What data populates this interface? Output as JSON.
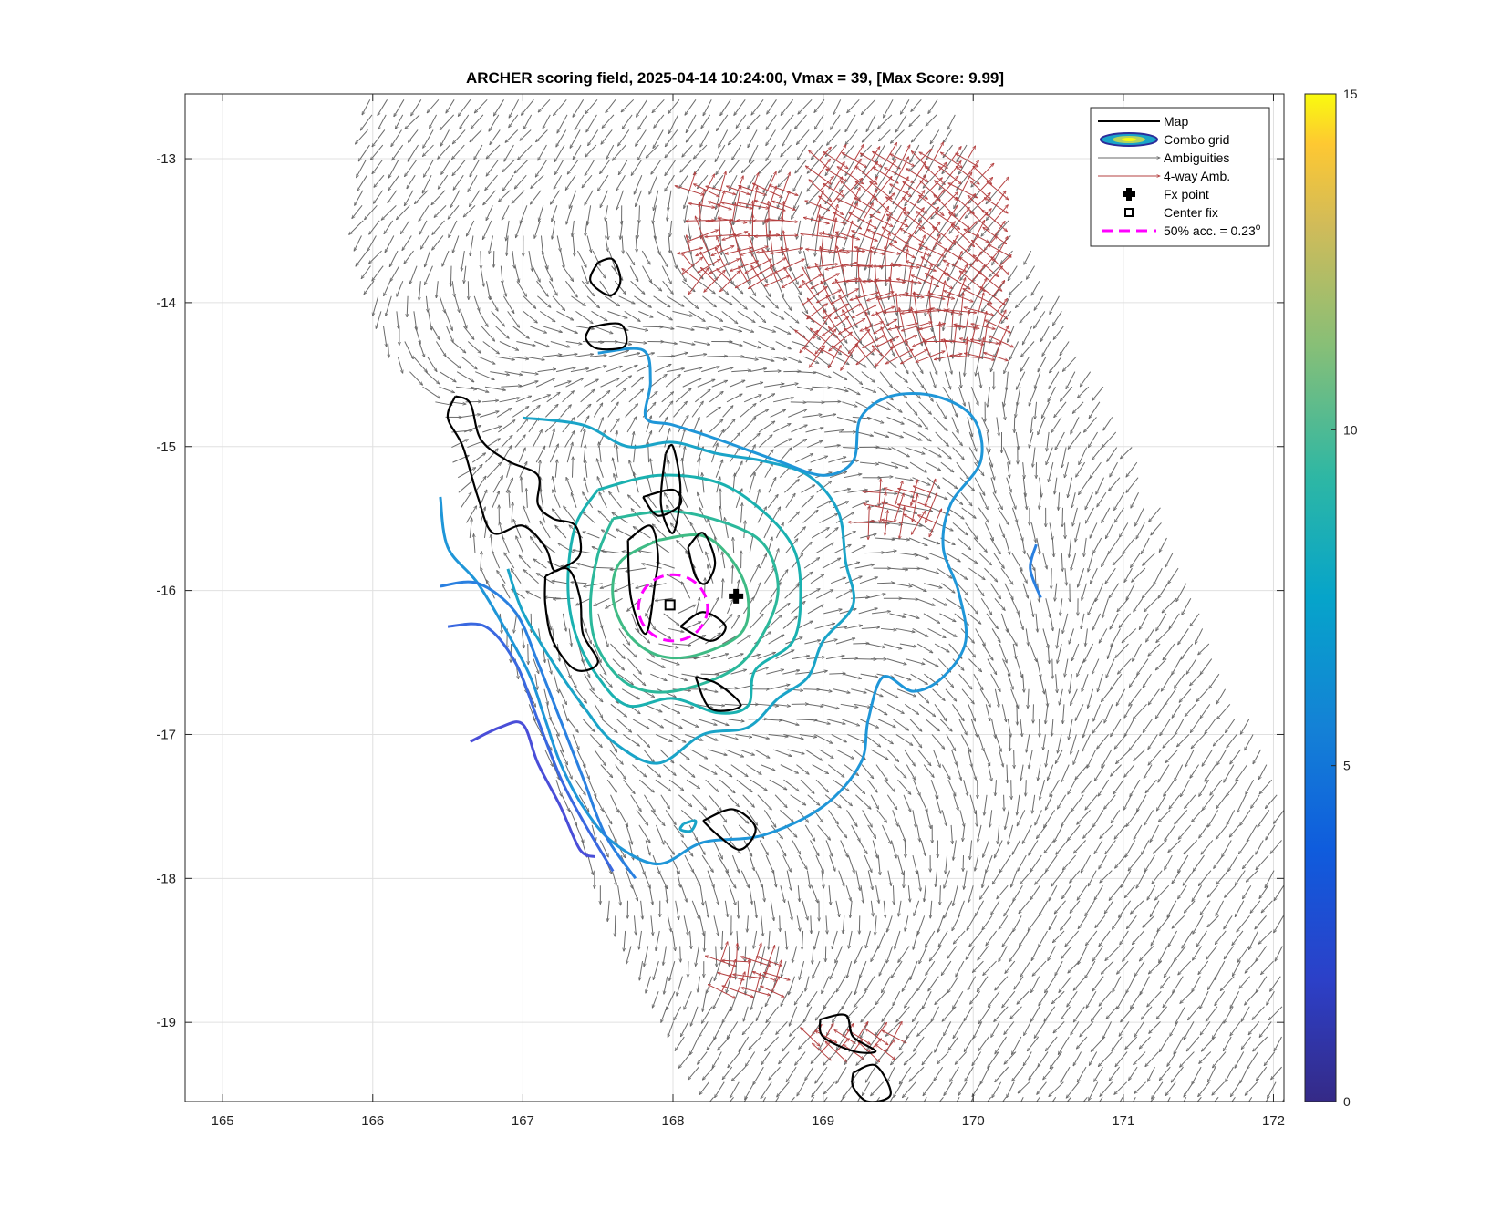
{
  "chart_data": {
    "type": "scatter",
    "title": "ARCHER scoring field, 2025-04-14 10:24:00, Vmax = 39, [Max Score: 9.99]",
    "xlabel": "",
    "ylabel": "",
    "xlim": [
      164.75,
      172.07
    ],
    "ylim": [
      -19.55,
      -12.55
    ],
    "xticks": [
      165,
      166,
      167,
      168,
      169,
      170,
      171,
      172
    ],
    "xtick_labels": [
      "165",
      "166",
      "167",
      "168",
      "169",
      "170",
      "171",
      "172"
    ],
    "yticks": [
      -13,
      -14,
      -15,
      -16,
      -17,
      -18,
      -19
    ],
    "ytick_labels": [
      "-13",
      "-14",
      "-15",
      "-16",
      "-17",
      "-18",
      "-19"
    ],
    "grid": true,
    "legend_position": "top-right",
    "legend": [
      {
        "label": "Map",
        "symbol": "black-line"
      },
      {
        "label": "Combo grid",
        "symbol": "contour-ellipse"
      },
      {
        "label": "Ambiguities",
        "symbol": "gray-arrow"
      },
      {
        "label": "4-way Amb.",
        "symbol": "red-arrow"
      },
      {
        "label": "Fx point",
        "symbol": "black-plus"
      },
      {
        "label": "Center fix",
        "symbol": "black-square"
      },
      {
        "label": "50% acc. = 0.23",
        "superscript": "o",
        "symbol": "magenta-dashed"
      }
    ],
    "fx_point": {
      "x": 168.42,
      "y": -16.04
    },
    "center_fix": {
      "x": 167.98,
      "y": -16.1
    },
    "accuracy_circle": {
      "center_x": 168.0,
      "center_y": -16.12,
      "radius_deg": 0.23
    },
    "colorbar": {
      "min": 0,
      "max": 15,
      "ticks": [
        0,
        5,
        10,
        15
      ],
      "tick_labels": [
        "0",
        "5",
        "10",
        "15"
      ],
      "colormap": "parula"
    },
    "contours": [
      {
        "level": 8.5,
        "color": "#3fbb85",
        "points": [
          [
            167.9,
            -15.65
          ],
          [
            168.2,
            -15.62
          ],
          [
            168.4,
            -15.8
          ],
          [
            168.5,
            -16.05
          ],
          [
            168.45,
            -16.3
          ],
          [
            168.15,
            -16.45
          ],
          [
            167.9,
            -16.45
          ],
          [
            167.7,
            -16.3
          ],
          [
            167.6,
            -16.05
          ],
          [
            167.65,
            -15.8
          ],
          [
            167.9,
            -15.65
          ]
        ]
      },
      {
        "level": 8.0,
        "color": "#2bb89b",
        "points": [
          [
            167.6,
            -15.5
          ],
          [
            168.0,
            -15.45
          ],
          [
            168.4,
            -15.55
          ],
          [
            168.62,
            -15.7
          ],
          [
            168.7,
            -16.0
          ],
          [
            168.6,
            -16.3
          ],
          [
            168.4,
            -16.55
          ],
          [
            168.0,
            -16.7
          ],
          [
            167.7,
            -16.65
          ],
          [
            167.5,
            -16.4
          ],
          [
            167.45,
            -16.1
          ],
          [
            167.5,
            -15.75
          ],
          [
            167.6,
            -15.5
          ]
        ]
      },
      {
        "level": 7.3,
        "color": "#1ab1b0",
        "points": [
          [
            167.5,
            -15.3
          ],
          [
            167.9,
            -15.2
          ],
          [
            168.3,
            -15.25
          ],
          [
            168.6,
            -15.45
          ],
          [
            168.8,
            -15.7
          ],
          [
            168.85,
            -16.0
          ],
          [
            168.8,
            -16.35
          ],
          [
            168.55,
            -16.55
          ],
          [
            168.5,
            -16.8
          ],
          [
            168.3,
            -16.85
          ],
          [
            168.0,
            -16.75
          ],
          [
            167.7,
            -16.8
          ],
          [
            167.5,
            -16.6
          ],
          [
            167.35,
            -16.3
          ],
          [
            167.3,
            -15.95
          ],
          [
            167.35,
            -15.55
          ],
          [
            167.5,
            -15.3
          ]
        ]
      },
      {
        "level": 6.5,
        "color": "#1aa4c8",
        "points": [
          [
            167.0,
            -14.8
          ],
          [
            167.4,
            -14.85
          ],
          [
            167.7,
            -15.0
          ],
          [
            168.0,
            -14.97
          ],
          [
            168.3,
            -15.05
          ],
          [
            168.6,
            -15.1
          ],
          [
            168.9,
            -15.2
          ],
          [
            169.1,
            -15.45
          ],
          [
            169.15,
            -15.8
          ],
          [
            169.2,
            -16.1
          ],
          [
            169.0,
            -16.35
          ],
          [
            168.9,
            -16.6
          ],
          [
            168.7,
            -16.75
          ],
          [
            168.5,
            -16.95
          ],
          [
            168.2,
            -17.0
          ],
          [
            167.9,
            -17.2
          ],
          [
            167.6,
            -17.05
          ],
          [
            167.4,
            -16.8
          ],
          [
            167.2,
            -16.5
          ],
          [
            167.0,
            -16.15
          ],
          [
            166.9,
            -15.85
          ]
        ]
      },
      {
        "level": 6.0,
        "color": "#1f96d8",
        "points": [
          [
            167.5,
            -14.35
          ],
          [
            167.8,
            -14.33
          ],
          [
            167.85,
            -14.55
          ],
          [
            167.82,
            -14.8
          ],
          [
            168.0,
            -14.85
          ],
          [
            168.3,
            -14.95
          ],
          [
            168.7,
            -15.1
          ],
          [
            169.0,
            -15.2
          ],
          [
            169.2,
            -15.1
          ],
          [
            169.25,
            -14.8
          ],
          [
            169.45,
            -14.65
          ],
          [
            169.75,
            -14.65
          ],
          [
            170.0,
            -14.8
          ],
          [
            170.05,
            -15.1
          ],
          [
            169.85,
            -15.4
          ],
          [
            169.8,
            -15.7
          ],
          [
            169.9,
            -16.0
          ],
          [
            169.95,
            -16.35
          ],
          [
            169.8,
            -16.6
          ],
          [
            169.6,
            -16.7
          ],
          [
            169.4,
            -16.6
          ],
          [
            169.3,
            -16.9
          ],
          [
            169.25,
            -17.2
          ],
          [
            169.0,
            -17.5
          ],
          [
            168.6,
            -17.7
          ],
          [
            168.2,
            -17.75
          ],
          [
            167.9,
            -17.9
          ],
          [
            167.6,
            -17.75
          ],
          [
            167.4,
            -17.5
          ],
          [
            167.25,
            -17.2
          ],
          [
            167.15,
            -16.9
          ],
          [
            167.05,
            -16.6
          ],
          [
            166.9,
            -16.3
          ],
          [
            166.7,
            -15.95
          ],
          [
            166.5,
            -15.7
          ],
          [
            166.45,
            -15.35
          ]
        ]
      },
      {
        "level": 5.0,
        "color": "#2a80e0",
        "points": [
          [
            166.45,
            -15.97
          ],
          [
            166.7,
            -15.95
          ],
          [
            166.95,
            -16.15
          ],
          [
            167.1,
            -16.5
          ],
          [
            167.25,
            -16.9
          ],
          [
            167.4,
            -17.3
          ],
          [
            167.55,
            -17.7
          ],
          [
            167.75,
            -18.0
          ]
        ]
      },
      {
        "level": 4.0,
        "color": "#3a68e0",
        "points": [
          [
            166.5,
            -16.25
          ],
          [
            166.75,
            -16.25
          ],
          [
            166.95,
            -16.5
          ],
          [
            167.1,
            -16.9
          ],
          [
            167.25,
            -17.3
          ],
          [
            167.4,
            -17.6
          ],
          [
            167.6,
            -17.95
          ]
        ]
      },
      {
        "level": 3.0,
        "color": "#4a4ed8",
        "points": [
          [
            166.65,
            -17.05
          ],
          [
            166.85,
            -16.95
          ],
          [
            167.0,
            -16.93
          ],
          [
            167.1,
            -17.2
          ],
          [
            167.25,
            -17.5
          ],
          [
            167.38,
            -17.8
          ],
          [
            167.48,
            -17.85
          ]
        ]
      },
      {
        "level": 5.0,
        "color": "#2a80e0",
        "points": [
          [
            170.42,
            -15.68
          ],
          [
            170.38,
            -15.85
          ],
          [
            170.45,
            -16.05
          ]
        ]
      },
      {
        "level": 6.5,
        "color": "#1aa4c8",
        "points": [
          [
            168.07,
            -17.62
          ],
          [
            168.15,
            -17.6
          ],
          [
            168.12,
            -17.67
          ],
          [
            168.05,
            -17.66
          ],
          [
            168.07,
            -17.62
          ]
        ]
      }
    ],
    "land_outlines": [
      [
        [
          167.5,
          -13.72
        ],
        [
          167.6,
          -13.7
        ],
        [
          167.65,
          -13.85
        ],
        [
          167.58,
          -13.95
        ],
        [
          167.45,
          -13.85
        ],
        [
          167.5,
          -13.72
        ]
      ],
      [
        [
          167.45,
          -14.17
        ],
        [
          167.65,
          -14.15
        ],
        [
          167.68,
          -14.3
        ],
        [
          167.5,
          -14.32
        ],
        [
          167.42,
          -14.25
        ],
        [
          167.45,
          -14.17
        ]
      ],
      [
        [
          166.55,
          -14.65
        ],
        [
          166.65,
          -14.7
        ],
        [
          166.72,
          -14.95
        ],
        [
          166.9,
          -15.1
        ],
        [
          167.1,
          -15.2
        ],
        [
          167.1,
          -15.4
        ],
        [
          167.2,
          -15.5
        ],
        [
          167.35,
          -15.55
        ],
        [
          167.38,
          -15.75
        ],
        [
          167.25,
          -15.85
        ],
        [
          167.2,
          -15.85
        ],
        [
          167.15,
          -15.7
        ],
        [
          167.0,
          -15.55
        ],
        [
          166.8,
          -15.6
        ],
        [
          166.7,
          -15.35
        ],
        [
          166.6,
          -15.0
        ],
        [
          166.5,
          -14.8
        ],
        [
          166.55,
          -14.65
        ]
      ],
      [
        [
          167.95,
          -15.05
        ],
        [
          168.0,
          -15.0
        ],
        [
          168.05,
          -15.3
        ],
        [
          168.0,
          -15.6
        ],
        [
          167.92,
          -15.4
        ],
        [
          167.95,
          -15.05
        ]
      ],
      [
        [
          167.15,
          -15.9
        ],
        [
          167.3,
          -15.85
        ],
        [
          167.38,
          -16.05
        ],
        [
          167.4,
          -16.3
        ],
        [
          167.5,
          -16.5
        ],
        [
          167.35,
          -16.55
        ],
        [
          167.2,
          -16.35
        ],
        [
          167.15,
          -16.1
        ],
        [
          167.15,
          -15.9
        ]
      ],
      [
        [
          167.7,
          -15.65
        ],
        [
          167.85,
          -15.55
        ],
        [
          167.9,
          -15.75
        ],
        [
          167.88,
          -15.95
        ],
        [
          167.82,
          -16.3
        ],
        [
          167.72,
          -16.05
        ],
        [
          167.7,
          -15.65
        ]
      ],
      [
        [
          168.1,
          -15.7
        ],
        [
          168.2,
          -15.6
        ],
        [
          168.28,
          -15.8
        ],
        [
          168.22,
          -15.95
        ],
        [
          168.15,
          -15.9
        ],
        [
          168.1,
          -15.7
        ]
      ],
      [
        [
          167.8,
          -15.35
        ],
        [
          168.0,
          -15.3
        ],
        [
          168.05,
          -15.4
        ],
        [
          167.9,
          -15.48
        ],
        [
          167.8,
          -15.35
        ]
      ],
      [
        [
          168.05,
          -16.25
        ],
        [
          168.2,
          -16.15
        ],
        [
          168.35,
          -16.25
        ],
        [
          168.25,
          -16.35
        ],
        [
          168.05,
          -16.25
        ]
      ],
      [
        [
          168.15,
          -16.6
        ],
        [
          168.3,
          -16.65
        ],
        [
          168.45,
          -16.8
        ],
        [
          168.25,
          -16.82
        ],
        [
          168.15,
          -16.6
        ]
      ],
      [
        [
          168.2,
          -17.6
        ],
        [
          168.4,
          -17.52
        ],
        [
          168.55,
          -17.65
        ],
        [
          168.45,
          -17.8
        ],
        [
          168.3,
          -17.7
        ],
        [
          168.2,
          -17.6
        ]
      ],
      [
        [
          168.98,
          -18.98
        ],
        [
          169.15,
          -18.95
        ],
        [
          169.2,
          -19.1
        ],
        [
          169.35,
          -19.2
        ],
        [
          169.2,
          -19.2
        ],
        [
          169.0,
          -19.1
        ],
        [
          168.98,
          -18.98
        ]
      ],
      [
        [
          169.2,
          -19.35
        ],
        [
          169.35,
          -19.3
        ],
        [
          169.45,
          -19.5
        ],
        [
          169.3,
          -19.55
        ],
        [
          169.2,
          -19.45
        ],
        [
          169.2,
          -19.35
        ]
      ]
    ],
    "swath": {
      "left_edge": [
        [
          166.0,
          -12.55
        ],
        [
          165.92,
          -13.5
        ],
        [
          166.1,
          -14.3
        ],
        [
          166.5,
          -14.8
        ],
        [
          166.6,
          -15.5
        ],
        [
          166.9,
          -16.3
        ],
        [
          167.15,
          -17.1
        ],
        [
          167.5,
          -18.0
        ],
        [
          167.9,
          -18.8
        ],
        [
          168.3,
          -19.55
        ]
      ],
      "right_edge": [
        [
          169.8,
          -12.55
        ],
        [
          170.6,
          -14.0
        ],
        [
          171.3,
          -15.5
        ],
        [
          171.8,
          -16.8
        ],
        [
          172.07,
          -17.4
        ],
        [
          172.07,
          -19.55
        ]
      ]
    },
    "ambiguity_regions": [
      {
        "x0": 168.1,
        "x1": 168.8,
        "y0": -13.2,
        "y1": -13.9
      },
      {
        "x0": 168.9,
        "x1": 170.2,
        "y0": -13.0,
        "y1": -14.4
      },
      {
        "x0": 169.3,
        "x1": 169.8,
        "y0": -15.3,
        "y1": -15.55
      },
      {
        "x0": 168.3,
        "x1": 168.7,
        "y0": -18.5,
        "y1": -18.8
      },
      {
        "x0": 168.9,
        "x1": 169.5,
        "y0": -19.0,
        "y1": -19.3
      }
    ]
  }
}
